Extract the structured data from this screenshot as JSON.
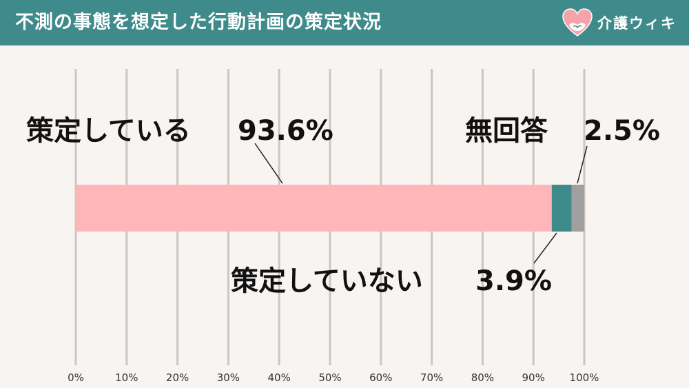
{
  "header": {
    "title": "不測の事態を想定した行動計画の策定状況",
    "brand": "介護ウィキ",
    "logo_icon": "heart-hands-icon"
  },
  "colors": {
    "header_bg": "#3f8a8a",
    "background": "#f7f4f1"
  },
  "chart_data": {
    "type": "bar",
    "orientation": "horizontal-stacked",
    "xlim": [
      0,
      100
    ],
    "x_ticks": [
      "0%",
      "10%",
      "20%",
      "30%",
      "40%",
      "50%",
      "60%",
      "70%",
      "80%",
      "90%",
      "100%"
    ],
    "grid": true,
    "series": [
      {
        "name": "策定している",
        "value": 93.6,
        "label": "93.6%",
        "color": "#ffb6b9"
      },
      {
        "name": "策定していない",
        "value": 3.9,
        "label": "3.9%",
        "color": "#3f8a8a"
      },
      {
        "name": "無回答",
        "value": 2.5,
        "label": "2.5%",
        "color": "#a0a0a0"
      }
    ]
  }
}
